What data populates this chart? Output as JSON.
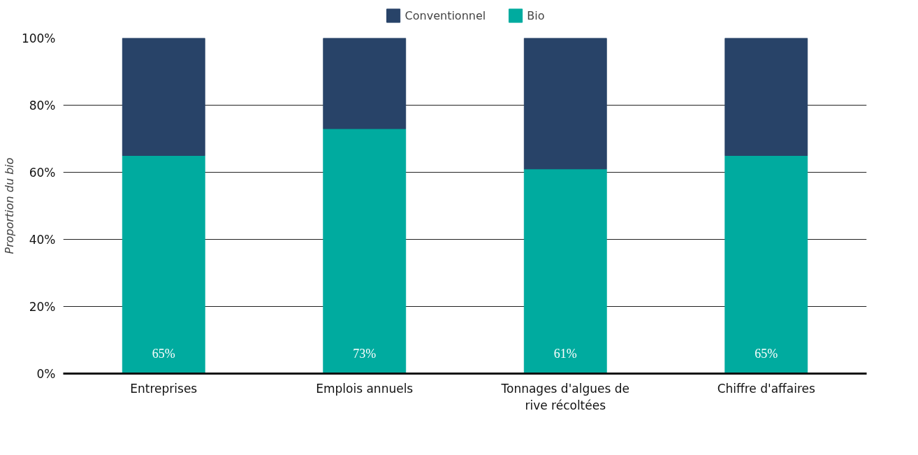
{
  "chart_data": {
    "type": "bar",
    "stacked": true,
    "ylabel": "Proportion du bio",
    "categories": [
      "Entreprises",
      "Emplois annuels",
      "Tonnages d'algues de rive récoltées",
      "Chiffre d'affaires"
    ],
    "series": [
      {
        "name": "Bio",
        "color": "#00ab9f",
        "values": [
          65,
          73,
          61,
          65
        ],
        "value_labels": [
          "65%",
          "73%",
          "61%",
          "65%"
        ]
      },
      {
        "name": "Conventionnel",
        "color": "#284368",
        "values": [
          35,
          27,
          39,
          35
        ]
      }
    ],
    "ylim": [
      0,
      100
    ],
    "yticks": [
      {
        "value": 0,
        "label": "0%"
      },
      {
        "value": 20,
        "label": "20%"
      },
      {
        "value": 40,
        "label": "40%"
      },
      {
        "value": 60,
        "label": "60%"
      },
      {
        "value": 80,
        "label": "80%"
      },
      {
        "value": 100,
        "label": "100%"
      }
    ],
    "grid": "y",
    "legend": "top"
  }
}
